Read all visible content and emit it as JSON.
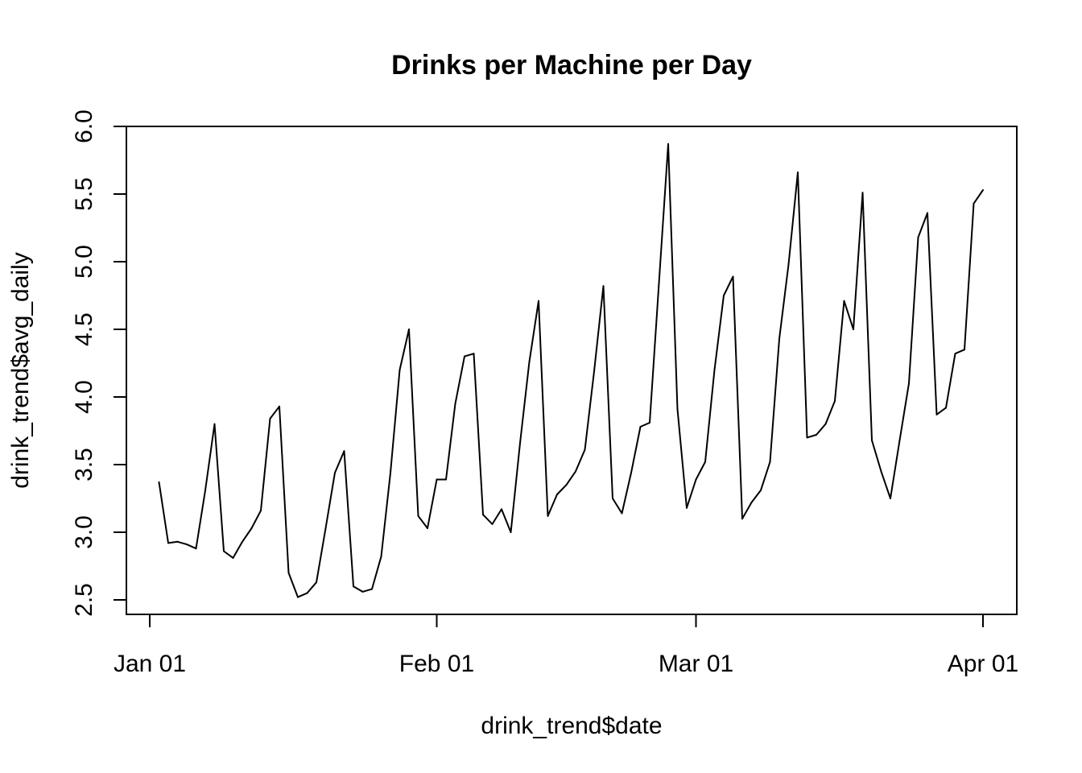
{
  "chart_data": {
    "type": "line",
    "title": "Drinks per Machine per Day",
    "xlabel": "drink_trend$date",
    "ylabel": "drink_trend$avg_daily",
    "x_ticks": [
      {
        "date": "2018-01-01",
        "label": "Jan 01"
      },
      {
        "date": "2018-02-01",
        "label": "Feb 01"
      },
      {
        "date": "2018-03-01",
        "label": "Mar 01"
      },
      {
        "date": "2018-04-01",
        "label": "Apr 01"
      }
    ],
    "y_ticks": [
      "2.5",
      "3.0",
      "3.5",
      "4.0",
      "4.5",
      "5.0",
      "5.5",
      "6.0"
    ],
    "ylim": [
      2.5,
      6.0
    ],
    "xlim": [
      "2018-01-01",
      "2018-04-01"
    ],
    "grid": false,
    "legend": "none",
    "line_color": "#000000",
    "series": [
      {
        "x": [
          "2018-01-02",
          "2018-01-03",
          "2018-01-04",
          "2018-01-05",
          "2018-01-06",
          "2018-01-07",
          "2018-01-08",
          "2018-01-09",
          "2018-01-10",
          "2018-01-11",
          "2018-01-12",
          "2018-01-13",
          "2018-01-14",
          "2018-01-15",
          "2018-01-16",
          "2018-01-17",
          "2018-01-18",
          "2018-01-19",
          "2018-01-20",
          "2018-01-21",
          "2018-01-22",
          "2018-01-23",
          "2018-01-24",
          "2018-01-25",
          "2018-01-26",
          "2018-01-27",
          "2018-01-28",
          "2018-01-29",
          "2018-01-30",
          "2018-01-31",
          "2018-02-01",
          "2018-02-02",
          "2018-02-03",
          "2018-02-04",
          "2018-02-05",
          "2018-02-06",
          "2018-02-07",
          "2018-02-08",
          "2018-02-09",
          "2018-02-10",
          "2018-02-11",
          "2018-02-12",
          "2018-02-13",
          "2018-02-14",
          "2018-02-15",
          "2018-02-16",
          "2018-02-17",
          "2018-02-18",
          "2018-02-19",
          "2018-02-20",
          "2018-02-21",
          "2018-02-22",
          "2018-02-23",
          "2018-02-24",
          "2018-02-25",
          "2018-02-26",
          "2018-02-27",
          "2018-02-28",
          "2018-03-01",
          "2018-03-02",
          "2018-03-03",
          "2018-03-04",
          "2018-03-05",
          "2018-03-06",
          "2018-03-07",
          "2018-03-08",
          "2018-03-09",
          "2018-03-10",
          "2018-03-11",
          "2018-03-12",
          "2018-03-13",
          "2018-03-14",
          "2018-03-15",
          "2018-03-16",
          "2018-03-17",
          "2018-03-18",
          "2018-03-19",
          "2018-03-20",
          "2018-03-21",
          "2018-03-22",
          "2018-03-23",
          "2018-03-24",
          "2018-03-25",
          "2018-03-26",
          "2018-03-27",
          "2018-03-28",
          "2018-03-29",
          "2018-03-30",
          "2018-03-31",
          "2018-04-01"
        ],
        "values": [
          3.37,
          2.92,
          2.93,
          2.91,
          2.88,
          3.31,
          3.8,
          2.86,
          2.81,
          2.93,
          3.03,
          3.16,
          3.84,
          3.93,
          2.7,
          2.52,
          2.55,
          2.63,
          3.03,
          3.44,
          3.6,
          2.6,
          2.56,
          2.58,
          2.82,
          3.44,
          4.2,
          4.5,
          3.12,
          3.03,
          3.39,
          3.39,
          3.95,
          4.3,
          4.32,
          3.13,
          3.06,
          3.17,
          3.0,
          3.66,
          4.26,
          4.71,
          3.12,
          3.28,
          3.35,
          3.45,
          3.61,
          4.19,
          4.82,
          3.25,
          3.14,
          3.44,
          3.78,
          3.81,
          4.84,
          5.87,
          3.91,
          3.18,
          3.39,
          3.52,
          4.2,
          4.75,
          4.89,
          3.1,
          3.22,
          3.31,
          3.52,
          4.43,
          4.98,
          5.66,
          3.7,
          3.72,
          3.8,
          3.97,
          4.71,
          4.5,
          5.51,
          3.68,
          3.45,
          3.25,
          3.68,
          4.1,
          5.18,
          5.36,
          3.87,
          3.92,
          4.32,
          4.35,
          5.43,
          5.53
        ]
      }
    ]
  }
}
